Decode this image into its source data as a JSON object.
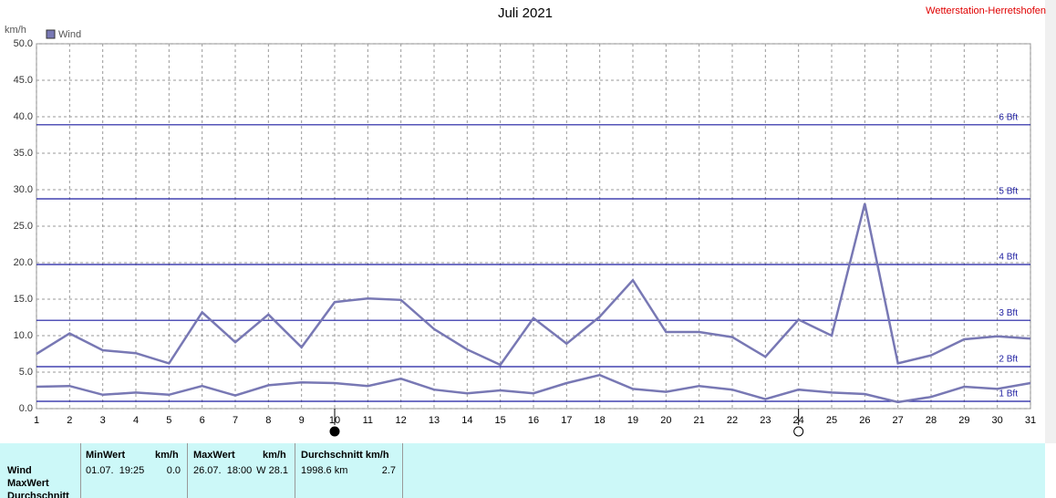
{
  "chart_data": {
    "type": "line",
    "title": "Juli 2021",
    "station": "Wetterstation-Herretshofen",
    "y_unit": "km/h",
    "x": [
      1,
      2,
      3,
      4,
      5,
      6,
      7,
      8,
      9,
      10,
      11,
      12,
      13,
      14,
      15,
      16,
      17,
      18,
      19,
      20,
      21,
      22,
      23,
      24,
      25,
      26,
      27,
      28,
      29,
      30,
      31
    ],
    "xlim": [
      1,
      31
    ],
    "xticks": [
      1,
      2,
      3,
      4,
      5,
      6,
      7,
      8,
      9,
      10,
      11,
      12,
      13,
      14,
      15,
      16,
      17,
      18,
      19,
      20,
      21,
      22,
      23,
      24,
      25,
      26,
      27,
      28,
      29,
      30,
      31
    ],
    "ylim": [
      0,
      50
    ],
    "yticks": [
      {
        "value": 0,
        "label": "0.0"
      },
      {
        "value": 5,
        "label": "5.0"
      },
      {
        "value": 10,
        "label": "10.0"
      },
      {
        "value": 15,
        "label": "15.0"
      },
      {
        "value": 20,
        "label": "20.0"
      },
      {
        "value": 25,
        "label": "25.0"
      },
      {
        "value": 30,
        "label": "30.0"
      },
      {
        "value": 35,
        "label": "35.0"
      },
      {
        "value": 40,
        "label": "40.0"
      },
      {
        "value": 45,
        "label": "45.0"
      },
      {
        "value": 50,
        "label": "50.0"
      }
    ],
    "grid": true,
    "series": [
      {
        "name": "Wind",
        "color": "#7878b4",
        "values": [
          7.5,
          10.3,
          8.0,
          7.6,
          6.2,
          13.2,
          9.1,
          12.9,
          8.4,
          14.6,
          15.1,
          14.9,
          10.9,
          8.1,
          6.0,
          12.4,
          8.9,
          12.6,
          17.6,
          10.5,
          10.5,
          9.8,
          7.1,
          12.2,
          10.0,
          28.1,
          6.2,
          7.3,
          9.5,
          9.9,
          9.6
        ]
      },
      {
        "color": "#7878b4",
        "values": [
          3.0,
          3.1,
          1.9,
          2.2,
          1.9,
          3.1,
          1.8,
          3.2,
          3.6,
          3.5,
          3.1,
          4.1,
          2.6,
          2.1,
          2.5,
          2.1,
          3.5,
          4.6,
          2.7,
          2.3,
          3.1,
          2.6,
          1.3,
          2.6,
          2.2,
          2.0,
          0.9,
          1.6,
          3.0,
          2.7,
          3.5
        ]
      }
    ],
    "reference_lines": [
      {
        "value": 1.0,
        "label": "1 Bft",
        "color": "#1c1ca0"
      },
      {
        "value": 5.75,
        "label": "2 Bft",
        "color": "#1c1ca0"
      },
      {
        "value": 12.1,
        "label": "3 Bft",
        "color": "#1c1ca0"
      },
      {
        "value": 19.75,
        "label": "4 Bft",
        "color": "#1c1ca0"
      },
      {
        "value": 28.75,
        "label": "5 Bft",
        "color": "#1c1ca0"
      },
      {
        "value": 38.9,
        "label": "6 Bft",
        "color": "#1c1ca0"
      }
    ],
    "moon_markers": [
      {
        "x": 10,
        "fill": "#000000"
      },
      {
        "x": 24,
        "fill": "#ffffff"
      }
    ]
  },
  "table": {
    "row_labels": [
      "Wind",
      "MaxWert",
      "Durchschnitt"
    ],
    "columns": [
      {
        "header": "MinWert",
        "unit": "km/h",
        "left": "01.07.  19:25",
        "right": "0.0"
      },
      {
        "header": "MaxWert",
        "unit": "km/h",
        "left": "26.07.  18:00",
        "right": "W 28.1"
      },
      {
        "header": "Durchschnitt km/h",
        "left": "1998.6 km",
        "right": "2.7"
      }
    ]
  }
}
